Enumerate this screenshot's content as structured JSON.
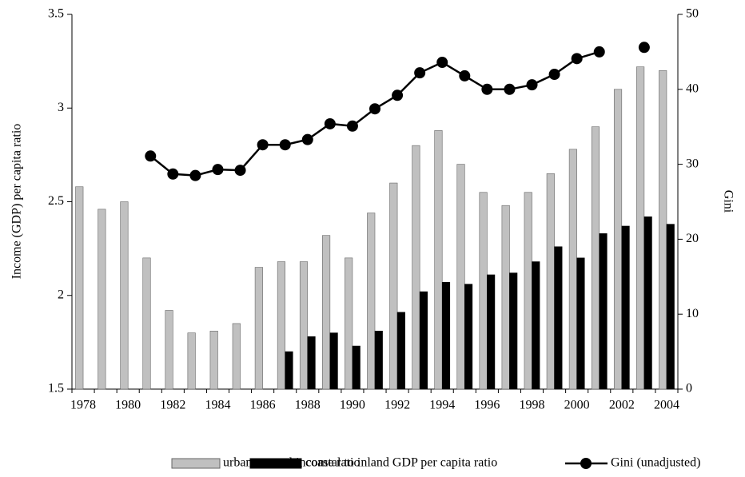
{
  "chart_data": {
    "type": "bar-line",
    "categories": [
      "1978",
      null,
      "1980",
      null,
      "1982",
      null,
      "1984",
      null,
      "1986",
      null,
      "1988",
      null,
      "1990",
      null,
      "1992",
      null,
      "1994",
      null,
      "1996",
      null,
      "1998",
      null,
      "2000",
      null,
      "2002",
      null,
      "2004"
    ],
    "ylabel": "Income (GDP) per capita ratio",
    "y2label": "Gini",
    "ylim": [
      1.5,
      3.5
    ],
    "yticks": [
      {
        "value": 1.5,
        "label": "1.5"
      },
      2,
      {
        "value": 2.5,
        "label": "2.5"
      },
      3,
      {
        "value": 3.5,
        "label": "3.5"
      }
    ],
    "y2lim": [
      0,
      50
    ],
    "y2ticks": [
      0,
      10,
      20,
      30,
      40,
      50
    ],
    "grid": false,
    "legend": "bottom",
    "series": [
      {
        "name": "urban to rural income ratio",
        "type": "bar",
        "color": "#c0c0c0",
        "values": [
          2.58,
          2.46,
          2.5,
          2.2,
          1.92,
          1.8,
          1.81,
          1.85,
          2.15,
          2.18,
          2.18,
          2.32,
          2.2,
          2.44,
          2.6,
          2.8,
          2.88,
          2.7,
          2.55,
          2.48,
          2.55,
          2.65,
          2.78,
          2.9,
          3.1,
          3.22,
          3.2
        ]
      },
      {
        "name": "coastal to inland GDP per capita ratio",
        "type": "bar",
        "color": "#000000",
        "values": [
          null,
          null,
          null,
          null,
          null,
          null,
          null,
          null,
          null,
          1.7,
          1.78,
          1.8,
          1.73,
          1.81,
          1.91,
          2.02,
          2.07,
          2.06,
          2.11,
          2.12,
          2.18,
          2.26,
          2.2,
          2.33,
          2.37,
          2.42,
          2.38
        ]
      },
      {
        "name": "Gini (unadjusted)",
        "type": "line",
        "axis": "y2",
        "color": "#000000",
        "values": [
          null,
          null,
          null,
          31.1,
          28.7,
          28.5,
          29.3,
          29.2,
          32.6,
          32.6,
          33.3,
          35.4,
          35.1,
          37.4,
          39.2,
          42.2,
          43.6,
          41.8,
          40.0,
          40.0,
          40.6,
          42.0,
          44.1,
          45.0,
          null,
          45.6,
          null
        ]
      }
    ]
  }
}
